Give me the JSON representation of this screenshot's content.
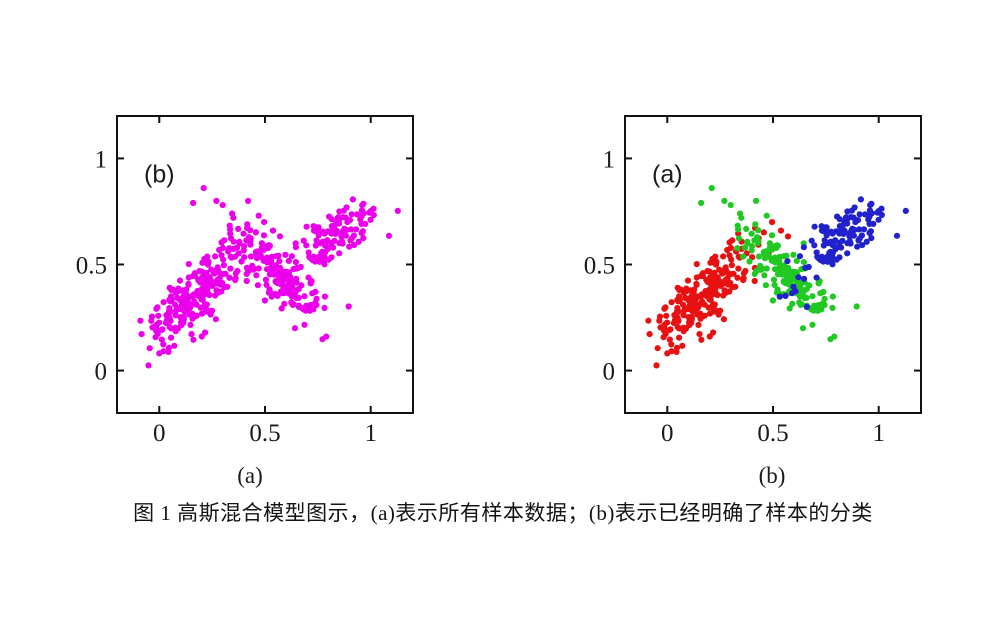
{
  "figure": {
    "caption": "图 1  高斯混合模型图示，(a)表示所有样本数据；(b)表示已经明确了样本的分类",
    "panels": [
      {
        "inner_label": "(b)",
        "sub_caption": "(a)"
      },
      {
        "inner_label": "(a)",
        "sub_caption": "(b)"
      }
    ]
  },
  "chart_data": {
    "type": "scatter",
    "title": "图 1 高斯混合模型图示",
    "xlim": [
      -0.2,
      1.2
    ],
    "ylim": [
      -0.2,
      1.2
    ],
    "xticks": [
      0,
      0.5,
      1
    ],
    "yticks": [
      0,
      0.5,
      1
    ],
    "tick_labels": [
      "0",
      "0.5",
      "1"
    ],
    "grid": false,
    "axis_color": "#111111",
    "tick_label_color": "#1b1b1b",
    "marker": {
      "shape": "circle",
      "radius_px": 3.1
    },
    "panels": [
      {
        "name": "all-samples",
        "inner_label": "(b)",
        "sub_caption": "(a)",
        "mode": "merged",
        "merged_color": "#ec00ec",
        "description": "所有样本数据 — all samples drawn in one magenta class"
      },
      {
        "name": "classified-samples",
        "inner_label": "(a)",
        "sub_caption": "(b)",
        "mode": "by_cluster",
        "description": "已经明确了样本的分类 — samples colored by their Gaussian component"
      }
    ],
    "clusters": [
      {
        "name": "class-1-red-lower-left-ascending",
        "color": "#e81111",
        "center": [
          0.17,
          0.35
        ],
        "angle_deg": 45,
        "sd_major": 0.155,
        "sd_minor": 0.055,
        "n": 240,
        "seed": 7,
        "extra_points": []
      },
      {
        "name": "class-2-green-middle-descending",
        "color": "#22c822",
        "center": [
          0.56,
          0.45
        ],
        "angle_deg": -45,
        "sd_major": 0.155,
        "sd_minor": 0.05,
        "n": 155,
        "seed": 13,
        "extra_points": [
          [
            0.21,
            0.86
          ],
          [
            0.27,
            0.8
          ],
          [
            0.3,
            0.78
          ],
          [
            0.42,
            0.8
          ],
          [
            0.16,
            0.79
          ],
          [
            0.47,
            0.73
          ],
          [
            0.35,
            0.72
          ],
          [
            0.79,
            0.16
          ]
        ]
      },
      {
        "name": "class-3-blue-upper-right-ascending",
        "color": "#2121cd",
        "center": [
          0.84,
          0.63
        ],
        "angle_deg": 40,
        "sd_major": 0.135,
        "sd_minor": 0.05,
        "n": 135,
        "seed": 21,
        "extra_points": [
          [
            0.62,
            0.44
          ],
          [
            0.66,
            0.3
          ]
        ]
      }
    ],
    "inner_label_pos": [
      0.0,
      0.93
    ]
  }
}
